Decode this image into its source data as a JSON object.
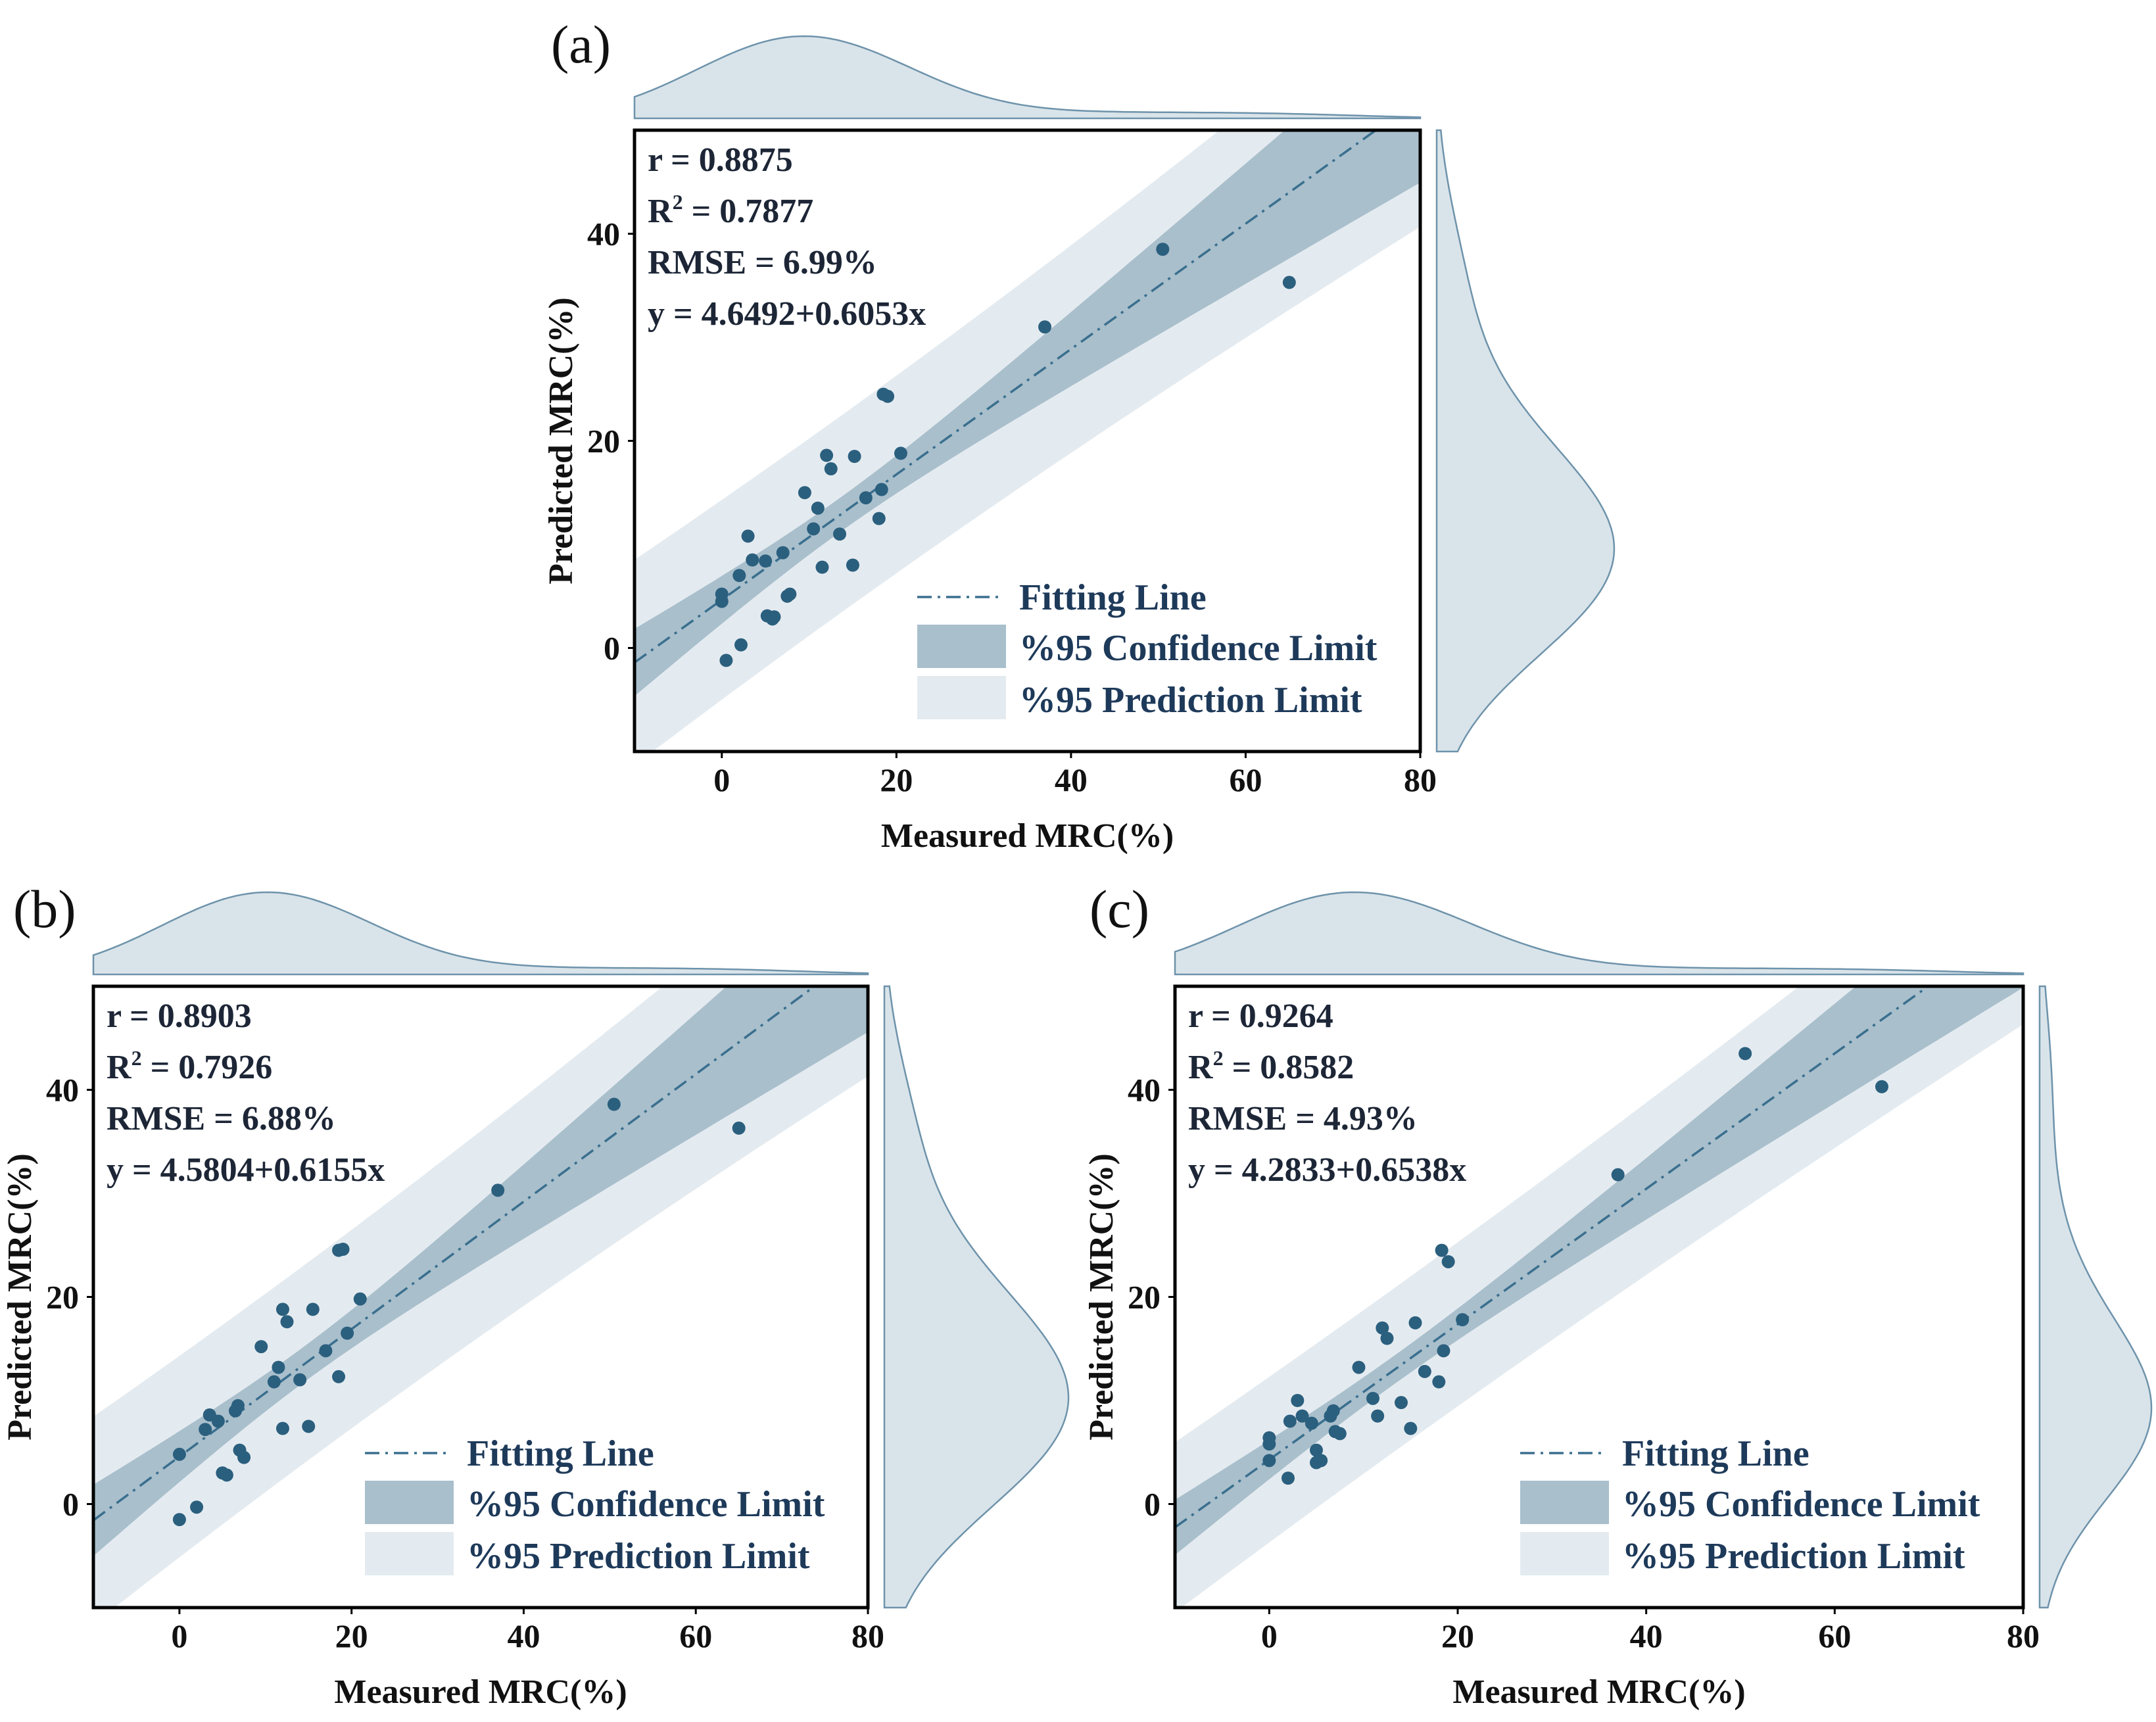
{
  "chart_data": [
    {
      "type": "scatter",
      "panel": "(a)",
      "stats": {
        "r": "r = 0.8875",
        "r2_prefix": "R",
        "r2_sup": "2",
        "r2_suffix": " = 0.7877",
        "rmse": "RMSE = 6.99%",
        "equation": "y = 4.6492+0.6053x"
      },
      "fit": {
        "intercept": 4.6492,
        "slope": 0.6053
      },
      "xlabel": "Measured MRC(%)",
      "ylabel": "Predicted MRC(%)",
      "xlim": [
        -10,
        80
      ],
      "ylim": [
        -10,
        50
      ],
      "xticks": [
        0,
        20,
        40,
        60,
        80
      ],
      "yticks": [
        0,
        20,
        40
      ],
      "x": [
        0,
        0,
        0.5,
        2,
        2.2,
        3,
        3.5,
        5,
        5.2,
        5.8,
        6,
        7,
        7.5,
        7.8,
        9.5,
        10.5,
        11,
        11.5,
        12,
        12.5,
        13.5,
        15,
        15.2,
        16.5,
        18,
        18.3,
        18.5,
        19,
        20.5,
        37,
        50.5,
        65
      ],
      "y": [
        4.5,
        5.2,
        -1.2,
        7,
        0.3,
        10.8,
        8.5,
        8.4,
        3.1,
        2.8,
        3,
        9.2,
        5,
        5.2,
        15,
        11.5,
        13.5,
        7.8,
        18.6,
        17.3,
        11,
        8,
        18.5,
        14.5,
        12.5,
        15.3,
        24.5,
        24.3,
        18.8,
        31,
        38.5,
        35.3
      ],
      "legend": [
        "Fitting Line",
        "%95 Confidence Limit",
        "%95 Prediction Limit"
      ],
      "colors": {
        "point": "#2b5f7e",
        "confidence": "#a9bfcc",
        "prediction": "#e4ebf0",
        "fit_line": "#3a6f8e",
        "density_fill": "#d9e4ea",
        "density_stroke": "#6e93ab"
      }
    },
    {
      "type": "scatter",
      "panel": "(b)",
      "stats": {
        "r": "r = 0.8903",
        "r2_prefix": "R",
        "r2_sup": "2",
        "r2_suffix": " = 0.7926",
        "rmse": "RMSE = 6.88%",
        "equation": "y = 4.5804+0.6155x"
      },
      "fit": {
        "intercept": 4.5804,
        "slope": 0.6155
      },
      "xlabel": "Measured MRC(%)",
      "ylabel": "Predicted MRC(%)",
      "xlim": [
        -10,
        80
      ],
      "ylim": [
        -10,
        50
      ],
      "xticks": [
        0,
        20,
        40,
        60,
        80
      ],
      "yticks": [
        0,
        20,
        40
      ],
      "x": [
        0,
        0,
        2,
        3,
        3.5,
        4.5,
        5,
        5.5,
        6.5,
        6.8,
        7,
        7.5,
        9.5,
        11,
        11.5,
        12,
        12,
        12.5,
        14,
        15,
        15.5,
        17,
        18.5,
        18.5,
        19,
        19.5,
        21,
        37,
        50.5,
        65
      ],
      "y": [
        4.8,
        -1.5,
        -0.3,
        7.2,
        8.6,
        8,
        3,
        2.8,
        9,
        9.5,
        5.2,
        4.5,
        15.2,
        11.8,
        13.2,
        7.3,
        18.8,
        17.6,
        12,
        7.5,
        18.8,
        14.8,
        12.3,
        24.5,
        24.6,
        16.5,
        19.8,
        30.3,
        38.6,
        36.3
      ],
      "legend": [
        "Fitting Line",
        "%95 Confidence Limit",
        "%95 Prediction Limit"
      ],
      "colors": {
        "point": "#2b5f7e",
        "confidence": "#a9bfcc",
        "prediction": "#e4ebf0",
        "fit_line": "#3a6f8e",
        "density_fill": "#d9e4ea",
        "density_stroke": "#6e93ab"
      }
    },
    {
      "type": "scatter",
      "panel": "(c)",
      "stats": {
        "r": "r = 0.9264",
        "r2_prefix": "R",
        "r2_sup": "2",
        "r2_suffix": " = 0.8582",
        "rmse": "RMSE = 4.93%",
        "equation": "y = 4.2833+0.6538x"
      },
      "fit": {
        "intercept": 4.2833,
        "slope": 0.6538
      },
      "xlabel": "Measured MRC(%)",
      "ylabel": "Predicted MRC(%)",
      "xlim": [
        -10,
        80
      ],
      "ylim": [
        -10,
        50
      ],
      "xticks": [
        0,
        20,
        40,
        60,
        80
      ],
      "yticks": [
        0,
        20,
        40
      ],
      "x": [
        0,
        0,
        0,
        2,
        2.2,
        3,
        3.5,
        4.5,
        5,
        5,
        5.5,
        6.5,
        6.8,
        7,
        7.5,
        9.5,
        11,
        11.5,
        12,
        12.5,
        14,
        15,
        15.5,
        16.5,
        18,
        18.3,
        18.5,
        19,
        20.5,
        37,
        50.5,
        65
      ],
      "y": [
        4.2,
        5.8,
        6.4,
        2.5,
        8,
        10,
        8.5,
        7.8,
        5.2,
        4,
        4.2,
        8.5,
        9,
        7,
        6.8,
        13.2,
        10.2,
        8.5,
        17,
        16,
        9.8,
        7.3,
        17.5,
        12.8,
        11.8,
        24.5,
        14.8,
        23.4,
        17.8,
        31.8,
        43.5,
        40.3
      ],
      "legend": [
        "Fitting Line",
        "%95 Confidence Limit",
        "%95 Prediction Limit"
      ],
      "colors": {
        "point": "#2b5f7e",
        "confidence": "#a9bfcc",
        "prediction": "#e4ebf0",
        "fit_line": "#3a6f8e",
        "density_fill": "#d9e4ea",
        "density_stroke": "#6e93ab"
      }
    }
  ]
}
